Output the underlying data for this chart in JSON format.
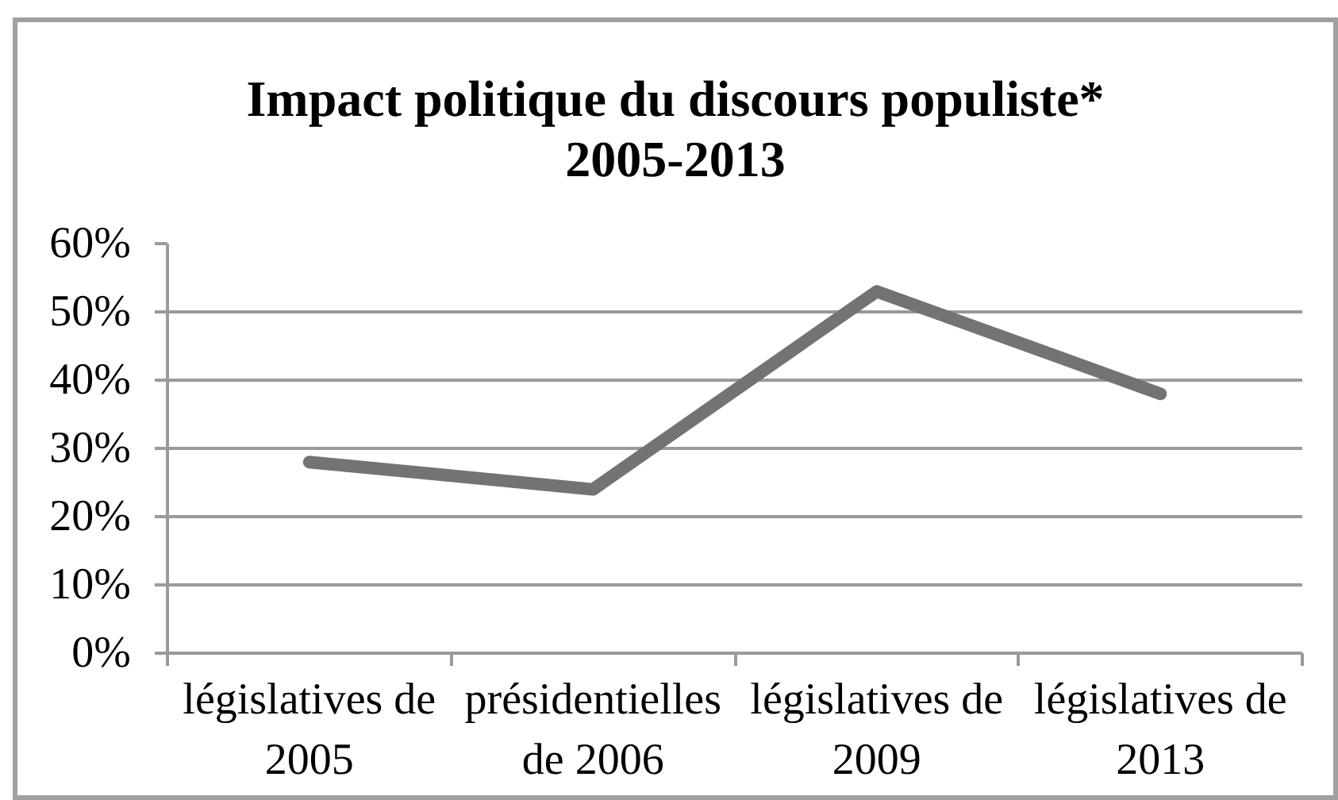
{
  "chart_data": {
    "type": "line",
    "title": "Impact politique du discours populiste*\n2005-2013",
    "categories": [
      "législatives de\n2005",
      "présidentielles\nde 2006",
      "législatives de\n2009",
      "législatives de\n2013"
    ],
    "series": [
      {
        "color": "#737373",
        "values": [
          28,
          24,
          53,
          38
        ]
      }
    ],
    "ylim": [
      0,
      60
    ],
    "yticks": [
      {
        "value": 0,
        "label": "0%"
      },
      {
        "value": 10,
        "label": "10%"
      },
      {
        "value": 20,
        "label": "20%"
      },
      {
        "value": 30,
        "label": "30%"
      },
      {
        "value": 40,
        "label": "40%"
      },
      {
        "value": 50,
        "label": "50%"
      },
      {
        "value": 60,
        "label": "60%"
      }
    ],
    "grid": "y",
    "line_style": "solid"
  }
}
